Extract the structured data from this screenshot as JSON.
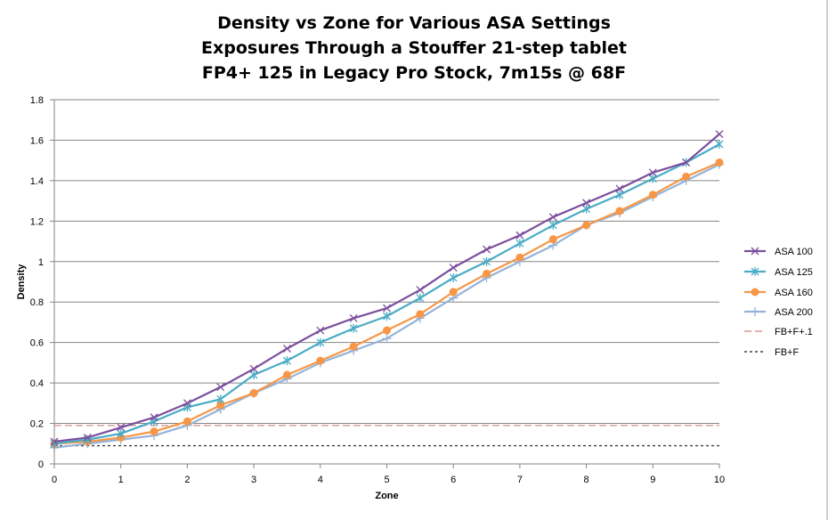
{
  "chart_data": {
    "type": "line",
    "title_lines": [
      "Density vs Zone for Various ASA Settings",
      "Exposures Through  a Stouffer 21-step tablet",
      "FP4+ 125 in Legacy Pro Stock, 7m15s @ 68F"
    ],
    "xlabel": "Zone",
    "ylabel": "Density",
    "xlim": [
      0,
      10
    ],
    "ylim": [
      0,
      1.8
    ],
    "x_ticks": [
      "0",
      "1",
      "2",
      "3",
      "4",
      "5",
      "6",
      "7",
      "8",
      "9",
      "10"
    ],
    "y_ticks": [
      "0",
      "0.2",
      "0.4",
      "0.6",
      "0.8",
      "1",
      "1.2",
      "1.4",
      "1.6",
      "1.8"
    ],
    "grid": "horizontal",
    "legend_position": "right",
    "x": [
      0,
      0.5,
      1,
      1.5,
      2,
      2.5,
      3,
      3.5,
      4,
      4.5,
      5,
      5.5,
      6,
      6.5,
      7,
      7.5,
      8,
      8.5,
      9,
      9.5,
      10
    ],
    "series": [
      {
        "name": "ASA 100",
        "color": "#7b4f9d",
        "marker": "x",
        "values": [
          0.11,
          0.13,
          0.18,
          0.23,
          0.3,
          0.38,
          0.47,
          0.57,
          0.66,
          0.72,
          0.77,
          0.86,
          0.97,
          1.06,
          1.13,
          1.22,
          1.29,
          1.36,
          1.44,
          1.49,
          1.63
        ]
      },
      {
        "name": "ASA 125",
        "color": "#4aacc5",
        "marker": "asterisk",
        "values": [
          0.1,
          0.12,
          0.15,
          0.21,
          0.28,
          0.32,
          0.44,
          0.51,
          0.6,
          0.67,
          0.73,
          0.82,
          0.92,
          1.0,
          1.09,
          1.18,
          1.26,
          1.33,
          1.41,
          1.49,
          1.58
        ]
      },
      {
        "name": "ASA 160",
        "color": "#f79646",
        "marker": "circle",
        "values": [
          0.1,
          0.11,
          0.13,
          0.16,
          0.21,
          0.29,
          0.35,
          0.44,
          0.51,
          0.58,
          0.66,
          0.74,
          0.85,
          0.94,
          1.02,
          1.11,
          1.18,
          1.25,
          1.33,
          1.42,
          1.49
        ]
      },
      {
        "name": "ASA 200",
        "color": "#95b3d7",
        "marker": "plus",
        "values": [
          0.08,
          0.1,
          0.12,
          0.14,
          0.19,
          0.27,
          0.35,
          0.42,
          0.5,
          0.56,
          0.62,
          0.72,
          0.82,
          0.92,
          1.0,
          1.08,
          1.18,
          1.24,
          1.32,
          1.4,
          1.48
        ]
      }
    ],
    "reference_lines": [
      {
        "name": "FB+F+.1",
        "value": 0.19,
        "color": "#d99694",
        "dash": "dash"
      },
      {
        "name": "FB+F",
        "value": 0.09,
        "color": "#404040",
        "dash": "dot"
      }
    ]
  }
}
